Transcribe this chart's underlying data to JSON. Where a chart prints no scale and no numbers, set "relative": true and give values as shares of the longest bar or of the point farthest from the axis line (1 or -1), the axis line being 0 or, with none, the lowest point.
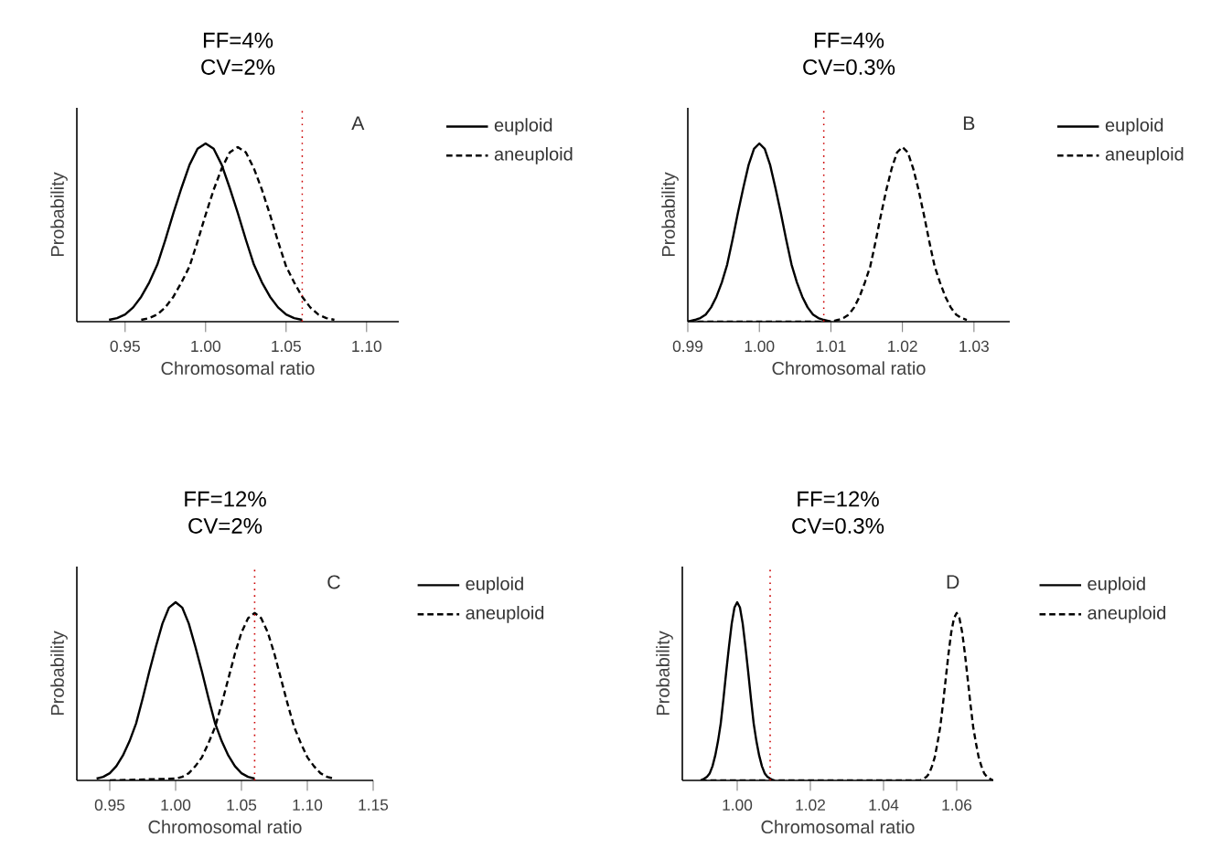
{
  "chart_data": [
    {
      "type": "line",
      "title": "FF=4%",
      "subtitle": "CV=2%",
      "xlabel": "Chromosomal ratio",
      "ylabel": "Probability",
      "relative": true,
      "legend": "right",
      "annotations": [
        "A"
      ],
      "xlim": [
        0.92,
        1.12
      ],
      "xticks": [
        0.95,
        {
          "value": 1.0,
          "label": "1.00"
        },
        1.05,
        {
          "value": 1.1,
          "label": "1.10"
        }
      ],
      "ref_lines": [
        {
          "axis": "x",
          "value": 1.06,
          "color": "#cc0000",
          "line_style": "dotted"
        }
      ],
      "series": [
        {
          "name": "euploid",
          "color": "#000000",
          "line_style": "solid",
          "x": [
            0.94,
            0.945,
            0.95,
            0.955,
            0.96,
            0.965,
            0.97,
            0.975,
            0.98,
            0.985,
            0.99,
            0.995,
            1.0,
            1.005,
            1.01,
            1.015,
            1.02,
            1.025,
            1.03,
            1.035,
            1.04,
            1.045,
            1.05,
            1.055,
            1.06
          ],
          "values": [
            0.01,
            0.02,
            0.04,
            0.08,
            0.14,
            0.22,
            0.32,
            0.46,
            0.61,
            0.75,
            0.88,
            0.97,
            1,
            0.97,
            0.88,
            0.75,
            0.61,
            0.46,
            0.32,
            0.22,
            0.14,
            0.08,
            0.04,
            0.02,
            0.01
          ]
        },
        {
          "name": "aneuploid",
          "color": "#000000",
          "line_style": "dashed",
          "x": [
            0.96,
            0.965,
            0.97,
            0.975,
            0.98,
            0.985,
            0.99,
            0.995,
            1.0,
            1.005,
            1.01,
            1.015,
            1.02,
            1.025,
            1.03,
            1.035,
            1.04,
            1.045,
            1.05,
            1.055,
            1.06,
            1.065,
            1.07,
            1.075,
            1.08
          ],
          "values": [
            0.01,
            0.02,
            0.04,
            0.08,
            0.14,
            0.22,
            0.31,
            0.45,
            0.6,
            0.74,
            0.86,
            0.95,
            0.98,
            0.95,
            0.86,
            0.74,
            0.6,
            0.45,
            0.31,
            0.22,
            0.14,
            0.08,
            0.04,
            0.02,
            0.01
          ]
        }
      ]
    },
    {
      "type": "line",
      "title": "FF=4%",
      "subtitle": "CV=0.3%",
      "xlabel": "Chromosomal ratio",
      "ylabel": "Probability",
      "relative": true,
      "legend": "right",
      "annotations": [
        "B"
      ],
      "xlim": [
        0.99,
        1.035
      ],
      "xticks": [
        {
          "value": 0.99,
          "label": "0.99"
        },
        {
          "value": 1.0,
          "label": "1.00"
        },
        1.01,
        1.02,
        1.03
      ],
      "ref_lines": [
        {
          "axis": "x",
          "value": 1.009,
          "color": "#cc0000",
          "line_style": "dotted"
        }
      ],
      "series": [
        {
          "name": "euploid",
          "color": "#000000",
          "line_style": "solid",
          "x": [
            0.99,
            0.991,
            0.99175,
            0.9925,
            0.99325,
            0.994,
            0.99475,
            0.9955,
            0.99625,
            0.997,
            0.99775,
            0.9985,
            0.99925,
            1.0,
            1.00075,
            1.0015,
            1.00225,
            1.003,
            1.00375,
            1.0045,
            1.00525,
            1.006,
            1.00675,
            1.0075,
            1.00825,
            1.009,
            1.01
          ],
          "values": [
            0,
            0.01,
            0.02,
            0.04,
            0.08,
            0.14,
            0.22,
            0.32,
            0.46,
            0.61,
            0.75,
            0.88,
            0.97,
            1,
            0.97,
            0.88,
            0.75,
            0.61,
            0.46,
            0.32,
            0.22,
            0.14,
            0.08,
            0.04,
            0.02,
            0.01,
            0
          ]
        },
        {
          "name": "aneuploid",
          "color": "#000000",
          "line_style": "dashed",
          "x": [
            0.99,
            1.01,
            1.011,
            1.01175,
            1.0125,
            1.01325,
            1.014,
            1.01475,
            1.0155,
            1.01625,
            1.017,
            1.01775,
            1.0185,
            1.01925,
            1.02,
            1.02075,
            1.0215,
            1.02225,
            1.023,
            1.02375,
            1.0245,
            1.02525,
            1.026,
            1.02675,
            1.0275,
            1.02825,
            1.029
          ],
          "values": [
            0,
            0,
            0.01,
            0.02,
            0.04,
            0.08,
            0.14,
            0.22,
            0.31,
            0.45,
            0.6,
            0.74,
            0.86,
            0.95,
            0.98,
            0.95,
            0.86,
            0.74,
            0.6,
            0.45,
            0.31,
            0.22,
            0.14,
            0.08,
            0.04,
            0.02,
            0.01
          ]
        }
      ]
    },
    {
      "type": "line",
      "title": "FF=12%",
      "subtitle": "CV=2%",
      "xlabel": "Chromosomal ratio",
      "ylabel": "Probability",
      "relative": true,
      "legend": "right",
      "annotations": [
        "C"
      ],
      "xlim": [
        0.925,
        1.15
      ],
      "xticks": [
        0.95,
        {
          "value": 1.0,
          "label": "1.00"
        },
        1.05,
        {
          "value": 1.1,
          "label": "1.10"
        },
        1.15
      ],
      "ref_lines": [
        {
          "axis": "x",
          "value": 1.06,
          "color": "#cc0000",
          "line_style": "dotted"
        }
      ],
      "series": [
        {
          "name": "euploid",
          "color": "#000000",
          "line_style": "solid",
          "x": [
            0.94,
            0.945,
            0.95,
            0.955,
            0.96,
            0.965,
            0.97,
            0.975,
            0.98,
            0.985,
            0.99,
            0.995,
            1.0,
            1.005,
            1.01,
            1.015,
            1.02,
            1.025,
            1.03,
            1.035,
            1.04,
            1.045,
            1.05,
            1.055,
            1.06
          ],
          "values": [
            0.01,
            0.02,
            0.04,
            0.08,
            0.14,
            0.22,
            0.32,
            0.46,
            0.61,
            0.75,
            0.88,
            0.97,
            1,
            0.97,
            0.88,
            0.75,
            0.61,
            0.46,
            0.32,
            0.22,
            0.14,
            0.08,
            0.04,
            0.02,
            0.01
          ]
        },
        {
          "name": "aneuploid",
          "color": "#000000",
          "line_style": "dashed",
          "x": [
            0.95,
            1.0,
            1.005,
            1.01,
            1.015,
            1.02,
            1.025,
            1.03,
            1.035,
            1.04,
            1.045,
            1.05,
            1.055,
            1.06,
            1.065,
            1.07,
            1.075,
            1.08,
            1.085,
            1.09,
            1.095,
            1.1,
            1.105,
            1.11,
            1.115,
            1.12
          ],
          "values": [
            0,
            0.01,
            0.02,
            0.04,
            0.08,
            0.13,
            0.21,
            0.3,
            0.43,
            0.57,
            0.71,
            0.83,
            0.91,
            0.94,
            0.91,
            0.83,
            0.71,
            0.57,
            0.43,
            0.3,
            0.21,
            0.13,
            0.08,
            0.04,
            0.02,
            0.01
          ]
        }
      ]
    },
    {
      "type": "line",
      "title": "FF=12%",
      "subtitle": "CV=0.3%",
      "xlabel": "Chromosomal ratio",
      "ylabel": "Probability",
      "relative": true,
      "legend": "right",
      "annotations": [
        "D"
      ],
      "xlim": [
        0.985,
        1.07
      ],
      "xticks": [
        {
          "value": 1.0,
          "label": "1.00"
        },
        1.02,
        1.04,
        1.06
      ],
      "ref_lines": [
        {
          "axis": "x",
          "value": 1.009,
          "color": "#cc0000",
          "line_style": "dotted"
        }
      ],
      "series": [
        {
          "name": "euploid",
          "color": "#000000",
          "line_style": "solid",
          "x": [
            0.99,
            0.991,
            0.99175,
            0.9925,
            0.99325,
            0.994,
            0.99475,
            0.9955,
            0.99625,
            0.997,
            0.99775,
            0.9985,
            0.99925,
            1.0,
            1.00075,
            1.0015,
            1.00225,
            1.003,
            1.00375,
            1.0045,
            1.00525,
            1.006,
            1.00675,
            1.0075,
            1.00825,
            1.009,
            1.01
          ],
          "values": [
            0,
            0.01,
            0.02,
            0.04,
            0.08,
            0.14,
            0.22,
            0.32,
            0.46,
            0.61,
            0.75,
            0.88,
            0.97,
            1,
            0.97,
            0.88,
            0.75,
            0.61,
            0.46,
            0.32,
            0.22,
            0.14,
            0.08,
            0.04,
            0.02,
            0.01,
            0
          ]
        },
        {
          "name": "aneuploid",
          "color": "#000000",
          "line_style": "dashed",
          "x": [
            0.99,
            1.01,
            1.05,
            1.051,
            1.05175,
            1.0525,
            1.05325,
            1.054,
            1.05475,
            1.0555,
            1.05625,
            1.057,
            1.05775,
            1.0585,
            1.05925,
            1.06,
            1.06075,
            1.0615,
            1.06225,
            1.063,
            1.06375,
            1.0645,
            1.06525,
            1.066,
            1.06675,
            1.0675,
            1.06825,
            1.069,
            1.07
          ],
          "values": [
            0,
            0,
            0,
            0.01,
            0.02,
            0.04,
            0.08,
            0.13,
            0.21,
            0.3,
            0.43,
            0.57,
            0.71,
            0.83,
            0.91,
            0.94,
            0.91,
            0.83,
            0.71,
            0.57,
            0.43,
            0.3,
            0.21,
            0.13,
            0.08,
            0.04,
            0.02,
            0.01,
            0
          ]
        }
      ]
    }
  ]
}
